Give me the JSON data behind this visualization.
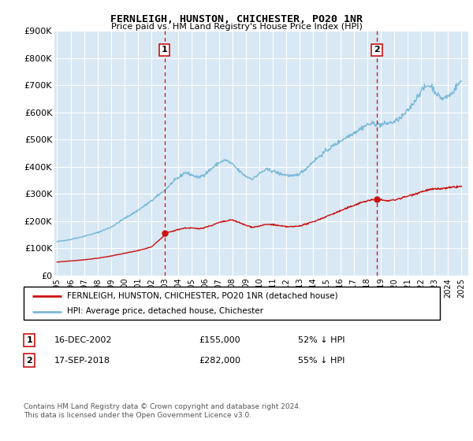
{
  "title": "FERNLEIGH, HUNSTON, CHICHESTER, PO20 1NR",
  "subtitle": "Price paid vs. HM Land Registry's House Price Index (HPI)",
  "ylim": [
    0,
    900000
  ],
  "yticks": [
    0,
    100000,
    200000,
    300000,
    400000,
    500000,
    600000,
    700000,
    800000,
    900000
  ],
  "ytick_labels": [
    "£0",
    "£100K",
    "£200K",
    "£300K",
    "£400K",
    "£500K",
    "£600K",
    "£700K",
    "£800K",
    "£900K"
  ],
  "xlim_start": 1994.8,
  "xlim_end": 2025.5,
  "hpi_color": "#7ab8d9",
  "price_color": "#cc1111",
  "vline_color": "#cc1111",
  "plot_bg_color": "#d8e8f4",
  "grid_color": "#ffffff",
  "transaction1_date": "16-DEC-2002",
  "transaction1_price": "£155,000",
  "transaction1_note": "52% ↓ HPI",
  "transaction1_x": 2002.96,
  "transaction1_y": 155000,
  "transaction2_date": "17-SEP-2018",
  "transaction2_price": "£282,000",
  "transaction2_note": "55% ↓ HPI",
  "transaction2_x": 2018.71,
  "transaction2_y": 282000,
  "legend_label_red": "FERNLEIGH, HUNSTON, CHICHESTER, PO20 1NR (detached house)",
  "legend_label_blue": "HPI: Average price, detached house, Chichester",
  "footer": "Contains HM Land Registry data © Crown copyright and database right 2024.\nThis data is licensed under the Open Government Licence v3.0.",
  "xtick_years": [
    1995,
    1996,
    1997,
    1998,
    1999,
    2000,
    2001,
    2002,
    2003,
    2004,
    2005,
    2006,
    2007,
    2008,
    2009,
    2010,
    2011,
    2012,
    2013,
    2014,
    2015,
    2016,
    2017,
    2018,
    2019,
    2020,
    2021,
    2022,
    2023,
    2024,
    2025
  ]
}
